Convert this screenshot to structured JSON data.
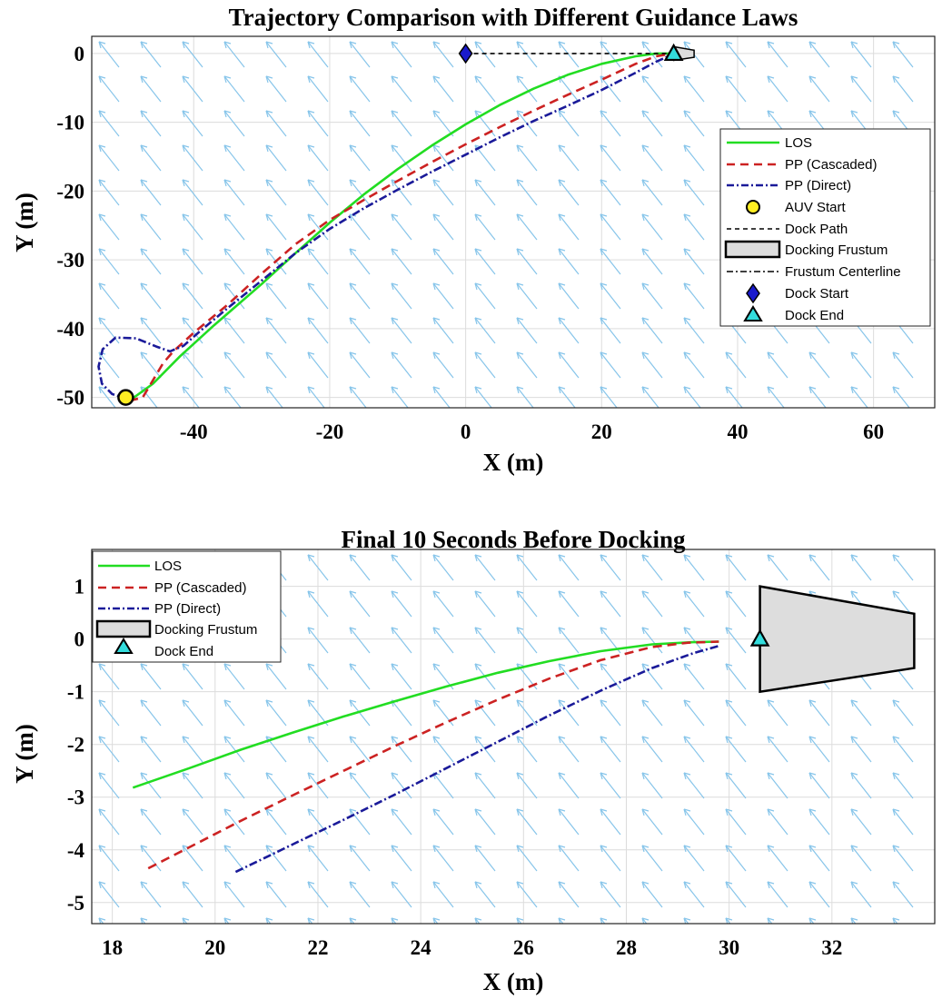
{
  "chart_data": [
    {
      "type": "line",
      "title": "Trajectory Comparison with Different Guidance Laws",
      "xlabel": "X (m)",
      "ylabel": "Y (m)",
      "xlim": [
        -55,
        69
      ],
      "ylim": [
        -51.5,
        2.5
      ],
      "xticks": [
        -40,
        -20,
        0,
        20,
        40,
        60
      ],
      "yticks": [
        0,
        -10,
        -20,
        -30,
        -40,
        -50
      ],
      "grid": true,
      "legend_position": "right",
      "current_field": {
        "color": "#87c5ea",
        "direction": "up-left"
      },
      "series": [
        {
          "name": "LOS",
          "color": "#22dd22",
          "style": "solid",
          "x": [
            -49.5,
            -46,
            -42,
            -37,
            -30,
            -25,
            -20,
            -15,
            -10,
            -5,
            0,
            5,
            10,
            15,
            20,
            25,
            28,
            30
          ],
          "y": [
            -50.5,
            -48,
            -44,
            -39.5,
            -33.5,
            -29,
            -24.6,
            -20.5,
            -16.8,
            -13.4,
            -10.3,
            -7.5,
            -5.1,
            -3.1,
            -1.5,
            -0.4,
            0,
            0
          ]
        },
        {
          "name": "PP (Cascaded)",
          "color": "#cc2222",
          "style": "dashed",
          "x": [
            -49.5,
            -47.5,
            -46,
            -44.5,
            -43,
            -40,
            -35,
            -30,
            -25,
            -20,
            -15,
            -10,
            -5,
            0,
            5,
            10,
            15,
            20,
            25,
            28,
            29.8
          ],
          "y": [
            -50.5,
            -50,
            -47.5,
            -45,
            -43.3,
            -40.6,
            -36.5,
            -32,
            -27.7,
            -24.2,
            -21.3,
            -18.5,
            -15.8,
            -13.2,
            -10.7,
            -8.3,
            -6,
            -3.8,
            -1.5,
            -0.4,
            -0.1
          ]
        },
        {
          "name": "PP (Direct)",
          "color": "#1a1a99",
          "style": "dashdot",
          "x": [
            -49.5,
            -52,
            -53.5,
            -54,
            -53.4,
            -51.5,
            -48.5,
            -45.5,
            -43.5,
            -41.5,
            -39,
            -35,
            -30,
            -25,
            -20,
            -15,
            -10,
            -5,
            0,
            5,
            10,
            15,
            20,
            25,
            28,
            29.8
          ],
          "y": [
            -50.3,
            -49.5,
            -48,
            -45.5,
            -43,
            -41.3,
            -41.4,
            -42.6,
            -43.3,
            -42.5,
            -40.3,
            -37,
            -33,
            -29,
            -25.5,
            -22.5,
            -19.8,
            -17.2,
            -14.7,
            -12.2,
            -9.8,
            -7.6,
            -5.3,
            -2.8,
            -1.2,
            -0.4
          ]
        },
        {
          "name": "Dock Path",
          "color": "#000000",
          "style": "dashed",
          "x": [
            0,
            30.5
          ],
          "y": [
            0,
            0
          ]
        }
      ],
      "markers": [
        {
          "name": "AUV Start",
          "x": -50,
          "y": -50,
          "shape": "circle",
          "fill": "#ffee22",
          "stroke": "#000000"
        },
        {
          "name": "Dock Start",
          "x": 0,
          "y": 0,
          "shape": "diamond",
          "fill": "#1a1acc",
          "stroke": "#000000"
        },
        {
          "name": "Dock End",
          "x": 30.6,
          "y": 0,
          "shape": "triangle",
          "fill": "#33dddd",
          "stroke": "#000000"
        }
      ],
      "frustum": {
        "name": "Docking Frustum",
        "fill": "#dddddd",
        "stroke": "#000000",
        "x": [
          30.6,
          33.6,
          33.6,
          30.6
        ],
        "y": [
          1,
          0.48,
          -0.55,
          -1
        ]
      },
      "legend": [
        "LOS",
        "PP (Cascaded)",
        "PP (Direct)",
        "AUV Start",
        "Dock Path",
        "Docking Frustum",
        "Frustum Centerline",
        "Dock Start",
        "Dock End"
      ]
    },
    {
      "type": "line",
      "title": "Final 10 Seconds Before Docking",
      "xlabel": "X (m)",
      "ylabel": "Y (m)",
      "xlim": [
        17.6,
        34
      ],
      "ylim": [
        -5.4,
        1.7
      ],
      "xticks": [
        18,
        20,
        22,
        24,
        26,
        28,
        30,
        32
      ],
      "yticks": [
        1,
        0,
        -1,
        -2,
        -3,
        -4,
        -5
      ],
      "grid": true,
      "legend_position": "top-left",
      "current_field": {
        "color": "#87c5ea",
        "direction": "up-left"
      },
      "series": [
        {
          "name": "LOS",
          "color": "#22dd22",
          "style": "solid",
          "x": [
            18.4,
            19.5,
            20.5,
            21.5,
            22.5,
            23.5,
            24.5,
            25.5,
            26.5,
            27.5,
            28.5,
            29.3,
            29.8
          ],
          "y": [
            -2.82,
            -2.45,
            -2.1,
            -1.78,
            -1.47,
            -1.18,
            -0.9,
            -0.64,
            -0.42,
            -0.23,
            -0.1,
            -0.06,
            -0.05
          ]
        },
        {
          "name": "PP (Cascaded)",
          "color": "#cc2222",
          "style": "dashed",
          "x": [
            18.7,
            19.5,
            20.5,
            21.5,
            22.5,
            23.5,
            24.5,
            25.5,
            26.5,
            27.5,
            28.5,
            29.2,
            29.8
          ],
          "y": [
            -4.35,
            -3.95,
            -3.45,
            -2.97,
            -2.5,
            -2.03,
            -1.58,
            -1.15,
            -0.75,
            -0.4,
            -0.15,
            -0.07,
            -0.05
          ]
        },
        {
          "name": "PP (Direct)",
          "color": "#1a1a99",
          "style": "dashdot",
          "x": [
            20.4,
            21.5,
            22.5,
            23.5,
            24.5,
            25.5,
            26.5,
            27.5,
            28.5,
            29.3,
            29.8
          ],
          "y": [
            -4.42,
            -3.9,
            -3.43,
            -2.95,
            -2.45,
            -1.95,
            -1.45,
            -0.98,
            -0.55,
            -0.27,
            -0.13
          ]
        }
      ],
      "markers": [
        {
          "name": "Dock End",
          "x": 30.6,
          "y": 0,
          "shape": "triangle",
          "fill": "#33dddd",
          "stroke": "#000000"
        }
      ],
      "frustum": {
        "name": "Docking Frustum",
        "fill": "#dddddd",
        "stroke": "#000000",
        "x": [
          30.6,
          33.6,
          33.6,
          30.6
        ],
        "y": [
          1,
          0.48,
          -0.55,
          -1
        ]
      },
      "legend": [
        "LOS",
        "PP (Cascaded)",
        "PP (Direct)",
        "Docking Frustum",
        "Dock End"
      ]
    }
  ]
}
